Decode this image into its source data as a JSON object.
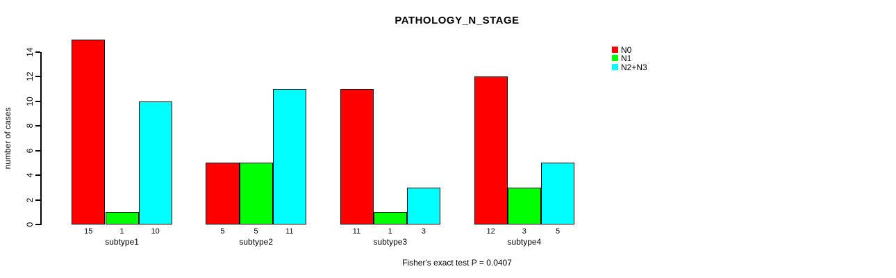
{
  "chart_data": {
    "type": "bar",
    "title": "PATHOLOGY_N_STAGE",
    "xlabel": "",
    "ylabel": "number of cases",
    "categories": [
      "subtype1",
      "subtype2",
      "subtype3",
      "subtype4"
    ],
    "series": [
      {
        "name": "N0",
        "color": "#ff0000",
        "values": [
          15,
          5,
          11,
          12
        ]
      },
      {
        "name": "N1",
        "color": "#00ff00",
        "values": [
          1,
          5,
          1,
          3
        ]
      },
      {
        "name": "N2+N3",
        "color": "#00ffff",
        "values": [
          10,
          11,
          3,
          5
        ]
      }
    ],
    "bar_value_labels": [
      [
        "15",
        "1",
        "10"
      ],
      [
        "5",
        "5",
        "11"
      ],
      [
        "11",
        "1",
        "3"
      ],
      [
        "12",
        "3",
        "5"
      ]
    ],
    "y_ticks": [
      0,
      2,
      4,
      6,
      8,
      10,
      12,
      14
    ],
    "ylim": [
      0,
      14
    ],
    "grid": false,
    "legend_position": "right",
    "annotation": "Fisher's exact test P = 0.0407",
    "colors": {
      "background": "#ffffff",
      "axis": "#000000",
      "text": "#000000"
    }
  }
}
